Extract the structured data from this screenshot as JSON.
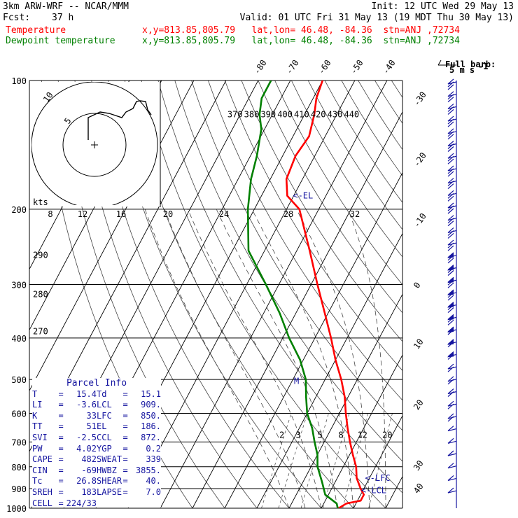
{
  "header": {
    "model": "3km ARW-WRF -- NCAR/MMM",
    "init": "Init: 12 UTC Wed 29 May 13",
    "fcst_label": "Fcst:",
    "fcst_value": "37 h",
    "valid": "Valid: 01 UTC Fri 31 May 13 (19 MDT Thu 30 May 13)",
    "temp_label": "Temperature",
    "temp_info": "x,y=813.85,805.79   lat,lon= 46.48, -84.36  stn=ANJ ,72734",
    "dew_label": "Dewpoint temperature",
    "dew_info": "x,y=813.85,805.79   lat,lon= 46.48, -84.36  stn=ANJ ,72734"
  },
  "colors": {
    "temperature": "#ff0000",
    "dewpoint": "#008000",
    "annotation": "#1515a0"
  },
  "barb_key": {
    "line1": "Full barb:",
    "line2": "5 m s",
    "sup": "-1"
  },
  "chart_data": {
    "type": "line",
    "title": "",
    "xlabel": "",
    "ylabel": "",
    "y_axis": "pressure (hPa), log scale",
    "ylim": [
      1000,
      100
    ],
    "pressure_ticks": [
      "100",
      "200",
      "300",
      "400",
      "500",
      "600",
      "700",
      "800",
      "900",
      "1000"
    ],
    "isotherm_labels": [
      "-80",
      "-70",
      "-60",
      "-50",
      "-40",
      "-30",
      "-20",
      "-10",
      "0",
      "10",
      "20",
      "30",
      "40"
    ],
    "theta_labels": [
      "370",
      "380",
      "390",
      "400",
      "410",
      "420",
      "430",
      "440"
    ],
    "theta_e_labels": [
      "290",
      "280",
      "270"
    ],
    "mixing_ratio_labels": [
      "2",
      "3",
      "5",
      "8",
      "12",
      "20"
    ],
    "series": [
      {
        "name": "Temperature",
        "points": [
          [
            1000,
            15.4
          ],
          [
            975,
            17
          ],
          [
            960,
            21
          ],
          [
            930,
            21
          ],
          [
            900,
            19
          ],
          [
            850,
            16
          ],
          [
            800,
            14
          ],
          [
            750,
            11
          ],
          [
            700,
            8
          ],
          [
            650,
            5
          ],
          [
            600,
            2
          ],
          [
            550,
            -1
          ],
          [
            500,
            -5
          ],
          [
            450,
            -10
          ],
          [
            400,
            -15
          ],
          [
            350,
            -21
          ],
          [
            300,
            -28
          ],
          [
            250,
            -36
          ],
          [
            200,
            -46
          ],
          [
            186,
            -52
          ],
          [
            170,
            -55
          ],
          [
            150,
            -56
          ],
          [
            135,
            -55
          ],
          [
            120,
            -57
          ],
          [
            110,
            -59
          ],
          [
            100,
            -60
          ]
        ]
      },
      {
        "name": "Dewpoint temperature",
        "points": [
          [
            1000,
            15.1
          ],
          [
            975,
            14
          ],
          [
            930,
            9
          ],
          [
            870,
            6
          ],
          [
            800,
            2
          ],
          [
            750,
            0
          ],
          [
            700,
            -3
          ],
          [
            650,
            -6
          ],
          [
            600,
            -10
          ],
          [
            550,
            -13
          ],
          [
            500,
            -16
          ],
          [
            450,
            -21
          ],
          [
            400,
            -28
          ],
          [
            350,
            -35
          ],
          [
            300,
            -44
          ],
          [
            250,
            -55
          ],
          [
            200,
            -62
          ],
          [
            170,
            -66
          ],
          [
            150,
            -68
          ],
          [
            130,
            -71
          ],
          [
            120,
            -74
          ],
          [
            110,
            -76
          ],
          [
            100,
            -76
          ]
        ]
      }
    ],
    "annotations": [
      "LFC",
      "LCL",
      "EL"
    ],
    "inset_hodograph": {
      "units": "kts",
      "ring_labels": [
        "5",
        "10"
      ],
      "speed_axis_labels": [
        "8",
        "12",
        "16",
        "20",
        "24",
        "28",
        "32"
      ]
    }
  },
  "parcel_info": {
    "title": "Parcel Info",
    "rows": [
      [
        {
          "label": "T",
          "value": "15.4"
        },
        {
          "label": "Td",
          "value": "15.1"
        }
      ],
      [
        {
          "label": "LI",
          "value": "-3.6"
        },
        {
          "label": "LCL",
          "value": "909."
        }
      ],
      [
        {
          "label": "K",
          "value": "33"
        },
        {
          "label": "LFC",
          "value": "850."
        }
      ],
      [
        {
          "label": "TT",
          "value": "51"
        },
        {
          "label": "EL",
          "value": "186."
        }
      ],
      [
        {
          "label": "SVI",
          "value": "-2.5"
        },
        {
          "label": "CCL",
          "value": "872."
        }
      ],
      [
        {
          "label": "PW",
          "value": "4.02"
        },
        {
          "label": "YGP",
          "value": "0.2"
        }
      ],
      [
        {
          "label": "CAPE",
          "value": "482"
        },
        {
          "label": "SWEAT",
          "value": "339"
        }
      ],
      [
        {
          "label": "CIN",
          "value": "-69"
        },
        {
          "label": "HWBZ",
          "value": "3855."
        }
      ],
      [
        {
          "label": "Tc",
          "value": "26.8"
        },
        {
          "label": "SHEAR",
          "value": "40."
        }
      ],
      [
        {
          "label": "SREH",
          "value": "183"
        },
        {
          "label": "LAPSE",
          "value": "7.0"
        }
      ],
      [
        {
          "label": "CELL",
          "value": "224/33"
        }
      ]
    ]
  }
}
